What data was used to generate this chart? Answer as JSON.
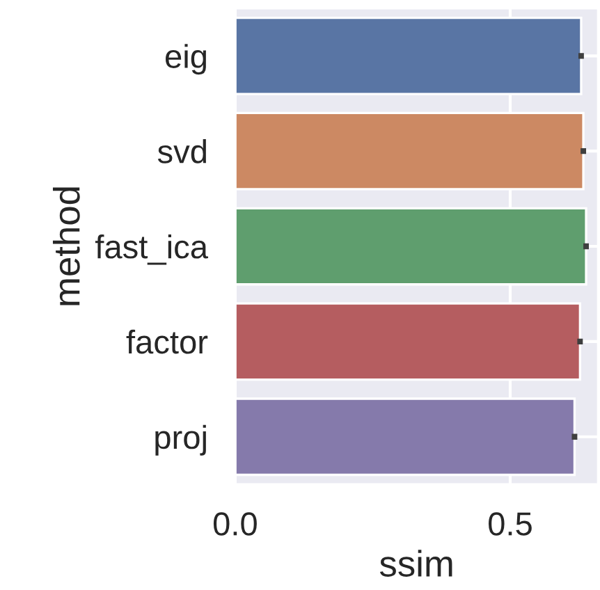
{
  "chart_data": {
    "type": "bar",
    "orientation": "horizontal",
    "xlabel": "ssim",
    "ylabel": "method",
    "categories": [
      "eig",
      "svd",
      "fast_ica",
      "factor",
      "proj"
    ],
    "values": [
      0.629,
      0.633,
      0.638,
      0.627,
      0.617
    ],
    "errors": [
      0.005,
      0.005,
      0.005,
      0.005,
      0.005
    ],
    "colors": [
      "#5975a4",
      "#cc8963",
      "#5f9e6e",
      "#b55d60",
      "#857aab"
    ],
    "xlim": [
      0,
      0.66
    ],
    "xticks": [
      {
        "value": 0,
        "label": "0.0"
      },
      {
        "value": 0.5,
        "label": "0.5"
      }
    ],
    "grid": true
  }
}
